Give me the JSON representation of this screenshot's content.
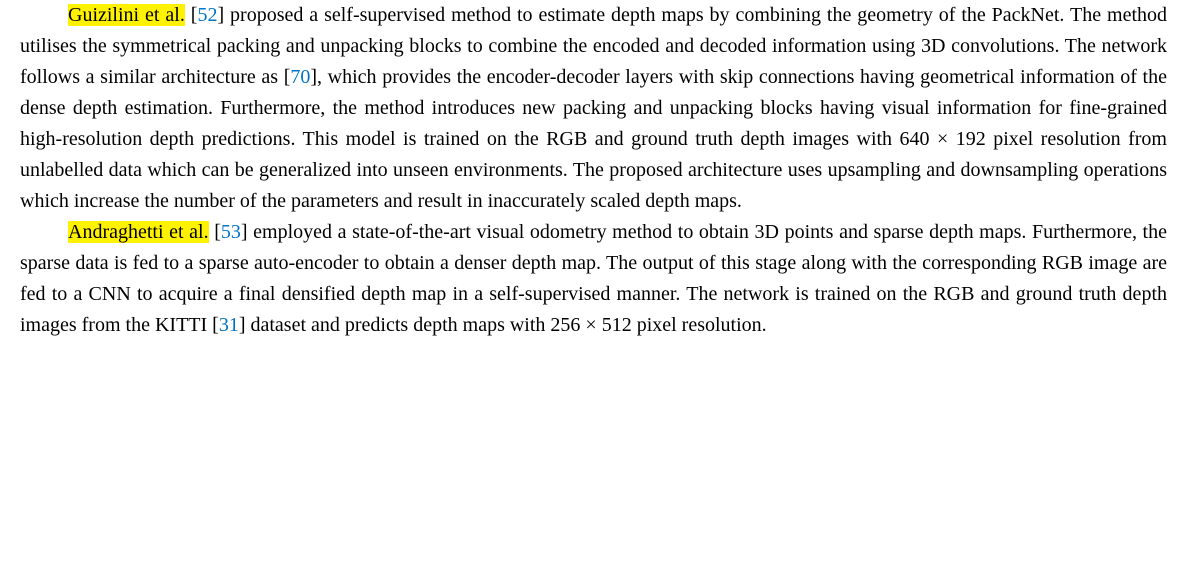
{
  "para1": {
    "author": "Guizilini et al.",
    "cite1": "52",
    "t1": " proposed a self-supervised method to estimate depth maps by combining the geometry of the PackNet. The method utilises the symmetrical packing and unpacking blocks to combine the encoded and decoded information using 3D convolutions. The network follows a similar architecture as [",
    "cite2": "70",
    "t2": "], which provides the encoder-decoder layers with skip connections having geometrical information of the dense depth estimation. Furthermore, the method introduces new packing and unpacking blocks having visual information for fine-grained high-resolution depth predictions. This model is trained on the RGB and ground truth depth images with 640 × 192 pixel resolution from unlabelled data which can be generalized into unseen environments. The proposed architecture uses upsampling and downsampling operations which increase the number of the parameters and result in inaccurately scaled depth maps."
  },
  "para2": {
    "author": "Andraghetti et al.",
    "cite1": "53",
    "t1": " employed a state-of-the-art visual odometry method to obtain 3D points and sparse depth maps. Furthermore, the sparse data is fed to a sparse auto-encoder to obtain a denser depth map. The output of this stage along with the corresponding RGB image are fed to a CNN to acquire a final densified depth map in a self-supervised manner. The network is trained on the RGB and ground truth depth images from the KITTI [",
    "cite2": "31",
    "t2": "] dataset and predicts depth maps with 256 × 512 pixel resolution."
  }
}
